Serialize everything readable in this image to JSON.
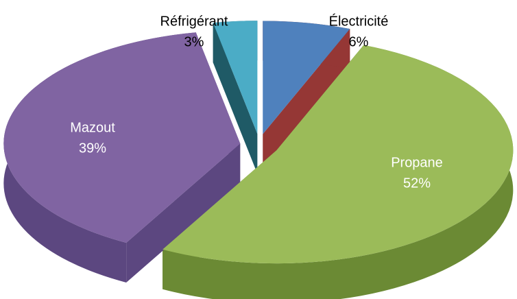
{
  "chart_data": {
    "type": "pie3d",
    "categories": [
      "Électricité",
      "Propane",
      "Mazout",
      "Réfrigérant"
    ],
    "values": [
      6,
      52,
      39,
      3
    ],
    "value_labels": [
      "6%",
      "52%",
      "39%",
      "3%"
    ],
    "colors": [
      "#4f81bd",
      "#9bbb59",
      "#8064a2",
      "#4bacc6"
    ],
    "side_colors": [
      "#953735",
      "#6b8a34",
      "#5c4780",
      "#1f5a66"
    ]
  }
}
